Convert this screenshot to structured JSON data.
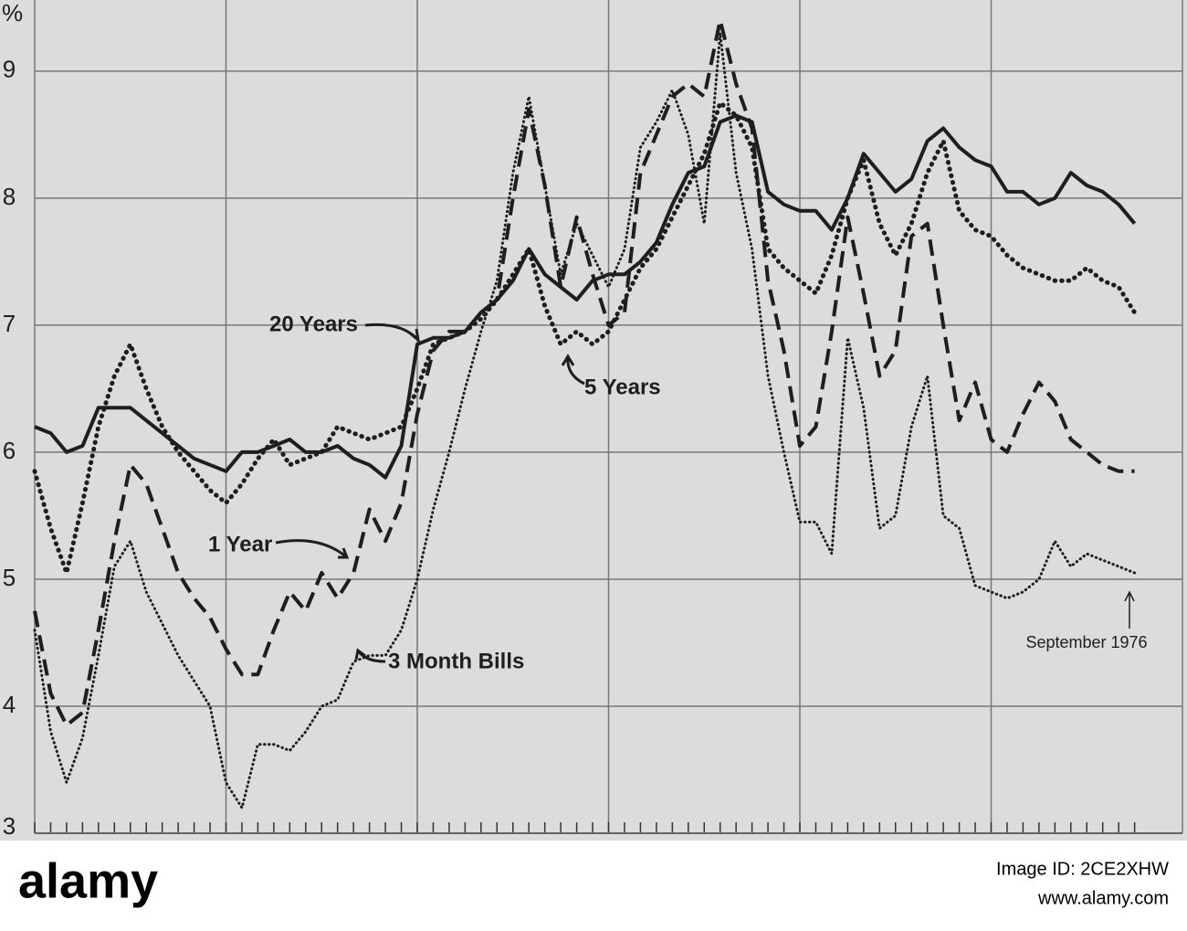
{
  "chart_data": {
    "type": "line",
    "y_label": "%",
    "categories": [
      null,
      null,
      null,
      null,
      null,
      null,
      null,
      null,
      null,
      null,
      null,
      null,
      null,
      null,
      null,
      null,
      null,
      null,
      null,
      null,
      null,
      null,
      null,
      null,
      null,
      null,
      null,
      null,
      null,
      null,
      null,
      null,
      null,
      null,
      null,
      null,
      null,
      null,
      null,
      null,
      null,
      null,
      null,
      null,
      null,
      null,
      null,
      null,
      null,
      null,
      null,
      null,
      null,
      null,
      null,
      null,
      null,
      null,
      null,
      null,
      null,
      null,
      null,
      null,
      null,
      null,
      null,
      null,
      null,
      null
    ],
    "ylim": [
      3,
      9.56
    ],
    "yticks": [
      3,
      4,
      5,
      6,
      7,
      8,
      9
    ],
    "grid": true,
    "series": [
      {
        "name": "20 Years",
        "color": "#1e1e1e",
        "style": "solid",
        "values": [
          6.2,
          6.15,
          6.0,
          6.05,
          6.35,
          6.35,
          6.35,
          6.25,
          6.15,
          6.05,
          5.95,
          5.9,
          5.85,
          6.0,
          6.0,
          6.05,
          6.1,
          6.0,
          6.0,
          6.05,
          5.95,
          5.9,
          5.8,
          6.05,
          6.85,
          6.9,
          6.9,
          6.95,
          7.1,
          7.2,
          7.35,
          7.6,
          7.4,
          7.3,
          7.2,
          7.35,
          7.4,
          7.4,
          7.5,
          7.65,
          7.95,
          8.2,
          8.25,
          8.6,
          8.65,
          8.6,
          8.05,
          7.95,
          7.9,
          7.9,
          7.75,
          8.0,
          8.35,
          8.2,
          8.05,
          8.15,
          8.45,
          8.55,
          8.4,
          8.3,
          8.25,
          8.05,
          8.05,
          7.95,
          8.0,
          8.2,
          8.1,
          8.05,
          7.95,
          7.8
        ]
      },
      {
        "name": "5 Years",
        "color": "#1e1e1e",
        "style": "dotted",
        "values": [
          5.85,
          5.4,
          5.05,
          5.6,
          6.2,
          6.6,
          6.85,
          6.5,
          6.2,
          6.0,
          5.85,
          5.7,
          5.6,
          5.75,
          5.95,
          6.1,
          5.9,
          5.95,
          6.0,
          6.2,
          6.15,
          6.1,
          6.15,
          6.2,
          6.5,
          6.85,
          6.9,
          6.95,
          7.05,
          7.2,
          7.4,
          7.6,
          7.15,
          6.85,
          6.95,
          6.85,
          6.95,
          7.2,
          7.45,
          7.6,
          7.85,
          8.1,
          8.35,
          8.75,
          8.65,
          8.4,
          7.6,
          7.45,
          7.35,
          7.25,
          7.55,
          8.0,
          8.3,
          7.8,
          7.55,
          7.8,
          8.2,
          8.45,
          7.9,
          7.75,
          7.7,
          7.55,
          7.45,
          7.4,
          7.35,
          7.35,
          7.45,
          7.35,
          7.3,
          7.1
        ]
      },
      {
        "name": "1 Year",
        "color": "#1e1e1e",
        "style": "dashed",
        "values": [
          4.75,
          4.1,
          3.85,
          3.95,
          4.6,
          5.3,
          5.9,
          5.75,
          5.4,
          5.05,
          4.85,
          4.7,
          4.45,
          4.25,
          4.25,
          4.6,
          4.9,
          4.75,
          5.05,
          4.85,
          5.05,
          5.55,
          5.3,
          5.6,
          6.3,
          6.8,
          6.95,
          6.95,
          7.1,
          7.2,
          8.0,
          8.7,
          8.1,
          7.3,
          7.85,
          7.4,
          7.0,
          7.1,
          8.2,
          8.5,
          8.8,
          8.9,
          8.8,
          9.4,
          8.9,
          8.55,
          7.35,
          6.8,
          6.05,
          6.2,
          6.95,
          7.85,
          7.25,
          6.6,
          6.8,
          7.7,
          7.8,
          7.0,
          6.25,
          6.55,
          6.1,
          6.0,
          6.3,
          6.55,
          6.4,
          6.1,
          6.0,
          5.9,
          5.85,
          5.85
        ]
      },
      {
        "name": "3 Month Bills",
        "color": "#1e1e1e",
        "style": "fine-dotted",
        "values": [
          4.6,
          3.8,
          3.4,
          3.75,
          4.4,
          5.1,
          5.3,
          4.9,
          4.65,
          4.4,
          4.2,
          4.0,
          3.4,
          3.2,
          3.7,
          3.7,
          3.65,
          3.8,
          4.0,
          4.05,
          4.35,
          4.4,
          4.4,
          4.6,
          5.0,
          5.55,
          6.0,
          6.5,
          6.95,
          7.35,
          8.2,
          8.8,
          8.1,
          7.4,
          7.8,
          7.55,
          7.3,
          7.6,
          8.4,
          8.6,
          8.85,
          8.5,
          7.8,
          9.3,
          8.2,
          7.6,
          6.6,
          6.0,
          5.45,
          5.45,
          5.2,
          6.9,
          6.35,
          5.4,
          5.5,
          6.2,
          6.6,
          5.5,
          5.4,
          4.95,
          4.9,
          4.85,
          4.9,
          5.0,
          5.3,
          5.1,
          5.2,
          5.15,
          5.1,
          5.05
        ]
      }
    ],
    "annotations": [
      "September 1976"
    ]
  },
  "watermark": {
    "brand": "alamy",
    "image_id": "Image ID: 2CE2XHW",
    "url": "www.alamy.com"
  }
}
